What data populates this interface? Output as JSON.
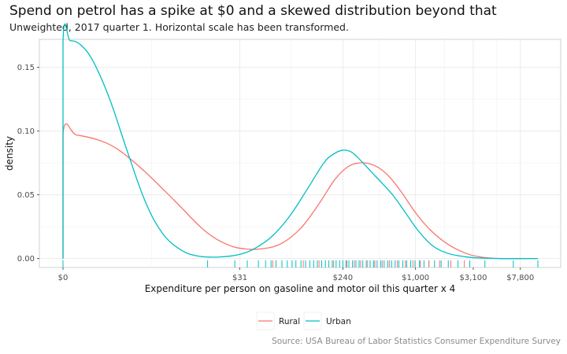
{
  "header": {
    "title": "Spend on petrol has a spike at $0 and a skewed distribution beyond that",
    "subtitle": "Unweighted, 2017 quarter 1. Horizontal scale has been transformed."
  },
  "caption": "Source: USA Bureau of Labor Statistics Consumer Expenditure Survey",
  "chart_data": {
    "type": "line",
    "xlabel": "Expenditure per person on gasoline and motor oil this quarter x 4",
    "ylabel": "density",
    "x_scale": "transformed",
    "x_ticks": [
      {
        "value": 0,
        "label": "$0"
      },
      {
        "value": 31,
        "label": "$31"
      },
      {
        "value": 240,
        "label": "$240"
      },
      {
        "value": 1000,
        "label": "$1,000"
      },
      {
        "value": 3100,
        "label": "$3,100"
      },
      {
        "value": 7800,
        "label": "$7,800"
      }
    ],
    "y_ticks": [
      0.0,
      0.05,
      0.1,
      0.15
    ],
    "y_tick_labels": [
      "0.00",
      "0.05",
      "0.10",
      "0.15"
    ],
    "ylim": [
      -0.007,
      0.172
    ],
    "grid": true,
    "legend_position": "bottom",
    "series": [
      {
        "name": "Rural",
        "color": "#f8766d",
        "points": [
          [
            0,
            0.0
          ],
          [
            0,
            0.098
          ],
          [
            0.3,
            0.097
          ],
          [
            1,
            0.093
          ],
          [
            2,
            0.085
          ],
          [
            4,
            0.068
          ],
          [
            8,
            0.045
          ],
          [
            15,
            0.022
          ],
          [
            24,
            0.011
          ],
          [
            35,
            0.0075
          ],
          [
            50,
            0.0078
          ],
          [
            72,
            0.012
          ],
          [
            105,
            0.024
          ],
          [
            150,
            0.043
          ],
          [
            205,
            0.062
          ],
          [
            265,
            0.072
          ],
          [
            330,
            0.075
          ],
          [
            400,
            0.0745
          ],
          [
            490,
            0.071
          ],
          [
            600,
            0.064
          ],
          [
            760,
            0.052
          ],
          [
            1000,
            0.036
          ],
          [
            1350,
            0.022
          ],
          [
            1900,
            0.011
          ],
          [
            2700,
            0.004
          ],
          [
            3600,
            0.0012
          ],
          [
            5000,
            0.0001
          ],
          [
            9000,
            0.0
          ],
          [
            11000,
            0.0
          ]
        ]
      },
      {
        "name": "Urban",
        "color": "#00bfc4",
        "points": [
          [
            0,
            0.0
          ],
          [
            0,
            0.17
          ],
          [
            0.15,
            0.171
          ],
          [
            0.4,
            0.168
          ],
          [
            0.8,
            0.155
          ],
          [
            1.5,
            0.125
          ],
          [
            2.5,
            0.085
          ],
          [
            4,
            0.045
          ],
          [
            6,
            0.02
          ],
          [
            9,
            0.007
          ],
          [
            13,
            0.002
          ],
          [
            20,
            0.0012
          ],
          [
            30,
            0.003
          ],
          [
            42,
            0.008
          ],
          [
            60,
            0.018
          ],
          [
            85,
            0.034
          ],
          [
            120,
            0.055
          ],
          [
            165,
            0.075
          ],
          [
            200,
            0.082
          ],
          [
            240,
            0.085
          ],
          [
            285,
            0.0835
          ],
          [
            340,
            0.077
          ],
          [
            420,
            0.068
          ],
          [
            520,
            0.059
          ],
          [
            650,
            0.049
          ],
          [
            820,
            0.036
          ],
          [
            1050,
            0.022
          ],
          [
            1400,
            0.01
          ],
          [
            1900,
            0.004
          ],
          [
            2700,
            0.0013
          ],
          [
            3500,
            0.0004
          ],
          [
            5000,
            0.0
          ],
          [
            11000,
            0.0
          ]
        ]
      }
    ],
    "rug": [
      {
        "series": "Urban",
        "values": [
          0,
          16,
          28,
          36,
          45,
          52,
          58,
          64,
          72,
          80,
          88,
          95,
          105,
          115,
          125,
          135,
          145,
          158,
          170,
          182,
          195,
          210,
          225,
          240,
          255,
          270,
          290,
          310,
          330,
          355,
          380,
          410,
          440,
          470,
          505,
          540,
          580,
          625,
          670,
          720,
          780,
          840,
          910,
          990,
          1080,
          1180,
          1300,
          1450,
          1650,
          1900,
          2300,
          2900,
          3900,
          6800,
          11000
        ]
      },
      {
        "series": "Rural",
        "values": [
          60,
          110,
          150,
          200,
          260,
          300,
          340,
          390,
          450,
          520,
          600,
          700,
          820,
          950,
          1100,
          1300,
          1600,
          2000,
          2600
        ]
      }
    ]
  },
  "legend": {
    "items": [
      {
        "label": "Rural",
        "color": "#f8766d"
      },
      {
        "label": "Urban",
        "color": "#00bfc4"
      }
    ]
  }
}
